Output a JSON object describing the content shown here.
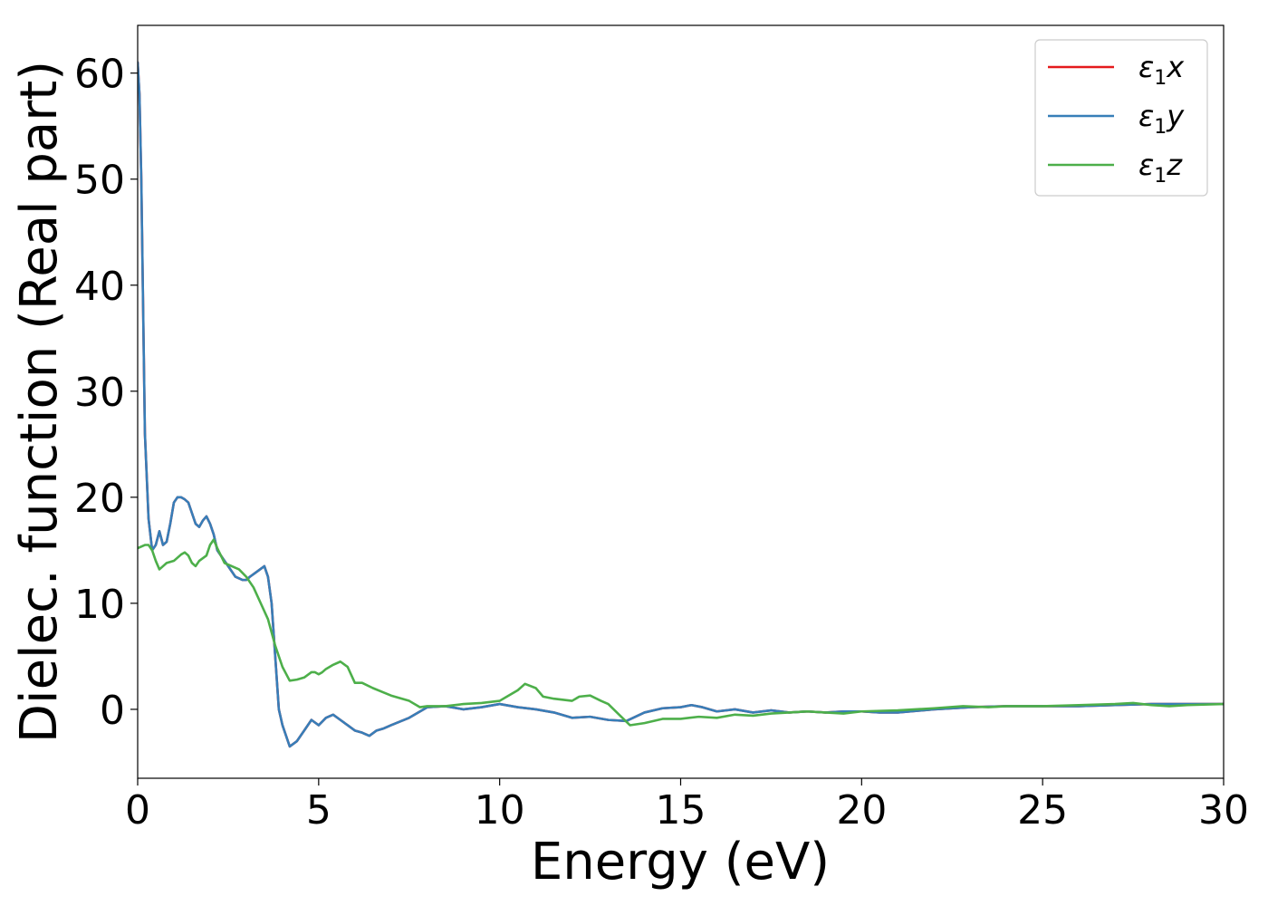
{
  "chart_data": {
    "type": "line",
    "xlabel": "Energy (eV)",
    "ylabel": "Dielec. function (Real part)",
    "xlim": [
      0,
      30
    ],
    "ylim": [
      -6.5,
      64.5
    ],
    "xticks": [
      0,
      5,
      10,
      15,
      20,
      25,
      30
    ],
    "xtick_labels": [
      "0",
      "5",
      "10",
      "15",
      "20",
      "25",
      "30"
    ],
    "yticks": [
      0,
      10,
      20,
      30,
      40,
      50,
      60
    ],
    "ytick_labels": [
      "0",
      "10",
      "20",
      "30",
      "40",
      "50",
      "60"
    ],
    "grid": false,
    "legend_position": "top-right",
    "series": [
      {
        "name": "ε1x",
        "legend_var": "x",
        "color": "#e41a1c",
        "x": [
          0,
          0.05,
          0.1,
          0.15,
          0.2,
          0.3,
          0.4,
          0.5,
          0.6,
          0.7,
          0.8,
          0.9,
          1.0,
          1.1,
          1.2,
          1.3,
          1.4,
          1.5,
          1.6,
          1.7,
          1.8,
          1.9,
          2.0,
          2.1,
          2.2,
          2.3,
          2.4,
          2.5,
          2.7,
          2.9,
          3.0,
          3.1,
          3.3,
          3.5,
          3.6,
          3.7,
          3.8,
          3.9,
          4.0,
          4.2,
          4.4,
          4.6,
          4.8,
          5.0,
          5.2,
          5.4,
          5.6,
          5.8,
          6.0,
          6.2,
          6.4,
          6.6,
          6.8,
          7.0,
          7.5,
          8.0,
          8.5,
          9.0,
          9.5,
          10.0,
          10.5,
          11.0,
          11.5,
          12.0,
          12.5,
          13.0,
          13.5,
          14.0,
          14.5,
          15.0,
          15.3,
          15.6,
          16.0,
          16.5,
          17.0,
          17.5,
          18.0,
          18.5,
          19.0,
          19.5,
          20.0,
          20.5,
          21.0,
          22.0,
          23.0,
          24.0,
          25.0,
          26.0,
          27.0,
          28.0,
          29.0,
          30.0
        ],
        "y": [
          61.0,
          58.0,
          50.0,
          38.0,
          26.0,
          18.0,
          15.0,
          15.5,
          16.8,
          15.5,
          15.8,
          17.5,
          19.5,
          20.0,
          20.0,
          19.8,
          19.5,
          18.5,
          17.5,
          17.2,
          17.8,
          18.2,
          17.5,
          16.5,
          15.0,
          14.5,
          14.0,
          13.5,
          12.5,
          12.2,
          12.2,
          12.5,
          13.0,
          13.5,
          12.5,
          10.0,
          5.0,
          0.0,
          -1.5,
          -3.5,
          -3.0,
          -2.0,
          -1.0,
          -1.5,
          -0.8,
          -0.5,
          -1.0,
          -1.5,
          -2.0,
          -2.2,
          -2.5,
          -2.0,
          -1.8,
          -1.5,
          -0.8,
          0.2,
          0.3,
          0.0,
          0.2,
          0.5,
          0.2,
          0.0,
          -0.3,
          -0.8,
          -0.7,
          -1.0,
          -1.1,
          -0.3,
          0.1,
          0.2,
          0.4,
          0.2,
          -0.2,
          0.0,
          -0.3,
          -0.1,
          -0.3,
          -0.2,
          -0.3,
          -0.2,
          -0.2,
          -0.3,
          -0.3,
          0.0,
          0.2,
          0.3,
          0.3,
          0.3,
          0.4,
          0.5,
          0.5,
          0.5
        ]
      },
      {
        "name": "ε1y",
        "legend_var": "y",
        "color": "#377eb8",
        "x": [
          0,
          0.05,
          0.1,
          0.15,
          0.2,
          0.3,
          0.4,
          0.5,
          0.6,
          0.7,
          0.8,
          0.9,
          1.0,
          1.1,
          1.2,
          1.3,
          1.4,
          1.5,
          1.6,
          1.7,
          1.8,
          1.9,
          2.0,
          2.1,
          2.2,
          2.3,
          2.4,
          2.5,
          2.7,
          2.9,
          3.0,
          3.1,
          3.3,
          3.5,
          3.6,
          3.7,
          3.8,
          3.9,
          4.0,
          4.2,
          4.4,
          4.6,
          4.8,
          5.0,
          5.2,
          5.4,
          5.6,
          5.8,
          6.0,
          6.2,
          6.4,
          6.6,
          6.8,
          7.0,
          7.5,
          8.0,
          8.5,
          9.0,
          9.5,
          10.0,
          10.5,
          11.0,
          11.5,
          12.0,
          12.5,
          13.0,
          13.5,
          14.0,
          14.5,
          15.0,
          15.3,
          15.6,
          16.0,
          16.5,
          17.0,
          17.5,
          18.0,
          18.5,
          19.0,
          19.5,
          20.0,
          20.5,
          21.0,
          22.0,
          23.0,
          24.0,
          25.0,
          26.0,
          27.0,
          28.0,
          29.0,
          30.0
        ],
        "y": [
          61.0,
          58.0,
          50.0,
          38.0,
          26.0,
          18.0,
          15.0,
          15.5,
          16.8,
          15.5,
          15.8,
          17.5,
          19.5,
          20.0,
          20.0,
          19.8,
          19.5,
          18.5,
          17.5,
          17.2,
          17.8,
          18.2,
          17.5,
          16.5,
          15.0,
          14.5,
          14.0,
          13.5,
          12.5,
          12.2,
          12.2,
          12.5,
          13.0,
          13.5,
          12.5,
          10.0,
          5.0,
          0.0,
          -1.5,
          -3.5,
          -3.0,
          -2.0,
          -1.0,
          -1.5,
          -0.8,
          -0.5,
          -1.0,
          -1.5,
          -2.0,
          -2.2,
          -2.5,
          -2.0,
          -1.8,
          -1.5,
          -0.8,
          0.2,
          0.3,
          0.0,
          0.2,
          0.5,
          0.2,
          0.0,
          -0.3,
          -0.8,
          -0.7,
          -1.0,
          -1.1,
          -0.3,
          0.1,
          0.2,
          0.4,
          0.2,
          -0.2,
          0.0,
          -0.3,
          -0.1,
          -0.3,
          -0.2,
          -0.3,
          -0.2,
          -0.2,
          -0.3,
          -0.3,
          0.0,
          0.2,
          0.3,
          0.3,
          0.3,
          0.4,
          0.5,
          0.5,
          0.5
        ]
      },
      {
        "name": "ε1z",
        "legend_var": "z",
        "color": "#4daf4a",
        "x": [
          0,
          0.2,
          0.3,
          0.4,
          0.5,
          0.6,
          0.7,
          0.8,
          1.0,
          1.2,
          1.3,
          1.4,
          1.5,
          1.6,
          1.7,
          1.9,
          2.0,
          2.1,
          2.2,
          2.4,
          2.6,
          2.8,
          3.0,
          3.2,
          3.4,
          3.6,
          3.8,
          4.0,
          4.2,
          4.4,
          4.6,
          4.8,
          4.9,
          5.0,
          5.1,
          5.2,
          5.4,
          5.6,
          5.8,
          6.0,
          6.2,
          6.5,
          7.0,
          7.5,
          7.8,
          8.0,
          8.5,
          9.0,
          9.5,
          10.0,
          10.2,
          10.5,
          10.7,
          11.0,
          11.2,
          11.5,
          12.0,
          12.2,
          12.5,
          12.8,
          13.0,
          13.3,
          13.6,
          14.0,
          14.5,
          15.0,
          15.5,
          16.0,
          16.5,
          17.0,
          17.5,
          18.0,
          18.5,
          19.0,
          19.5,
          20.0,
          21.0,
          22.0,
          22.8,
          23.5,
          24.0,
          25.0,
          26.0,
          27.0,
          27.5,
          28.0,
          28.5,
          29.0,
          30.0
        ],
        "y": [
          15.2,
          15.5,
          15.5,
          15.0,
          14.0,
          13.2,
          13.5,
          13.8,
          14.0,
          14.6,
          14.8,
          14.5,
          13.8,
          13.5,
          14.0,
          14.5,
          15.5,
          16.0,
          15.2,
          13.8,
          13.5,
          13.2,
          12.5,
          11.5,
          10.0,
          8.5,
          6.0,
          4.0,
          2.7,
          2.8,
          3.0,
          3.5,
          3.5,
          3.3,
          3.5,
          3.8,
          4.2,
          4.5,
          4.0,
          2.5,
          2.5,
          2.0,
          1.3,
          0.8,
          0.2,
          0.3,
          0.3,
          0.5,
          0.6,
          0.8,
          1.2,
          1.8,
          2.4,
          2.0,
          1.2,
          1.0,
          0.8,
          1.2,
          1.3,
          0.8,
          0.5,
          -0.5,
          -1.5,
          -1.3,
          -0.9,
          -0.9,
          -0.7,
          -0.8,
          -0.5,
          -0.6,
          -0.4,
          -0.3,
          -0.2,
          -0.3,
          -0.4,
          -0.2,
          -0.1,
          0.1,
          0.3,
          0.2,
          0.3,
          0.3,
          0.4,
          0.5,
          0.6,
          0.4,
          0.3,
          0.4,
          0.5
        ]
      }
    ]
  }
}
